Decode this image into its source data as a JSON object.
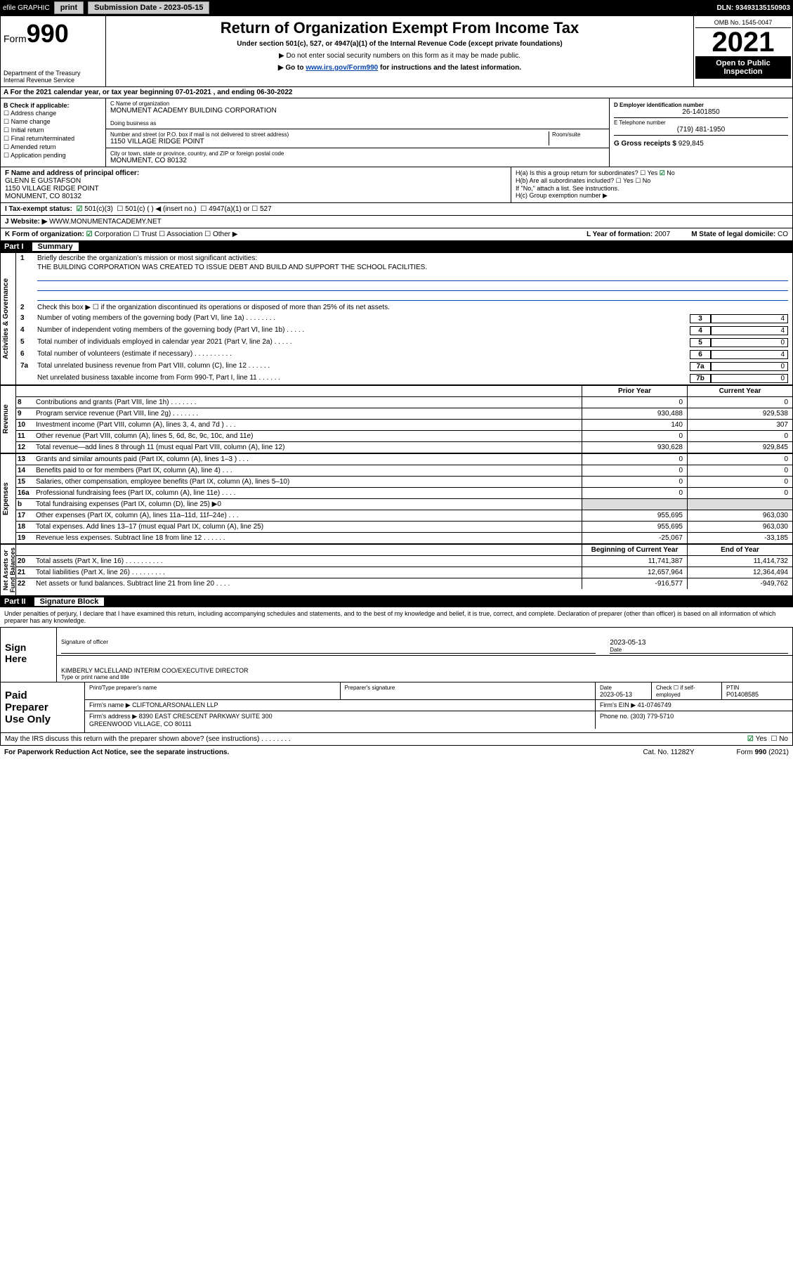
{
  "topbar": {
    "efile": "efile GRAPHIC",
    "print": "print",
    "subdate_label": "Submission Date - 2023-05-15",
    "dln": "DLN: 93493135150903"
  },
  "header": {
    "form_label": "Form",
    "form_num": "990",
    "dept": "Department of the Treasury\nInternal Revenue Service",
    "title": "Return of Organization Exempt From Income Tax",
    "subtitle": "Under section 501(c), 527, or 4947(a)(1) of the Internal Revenue Code (except private foundations)",
    "note1": "▶ Do not enter social security numbers on this form as it may be made public.",
    "note2_pre": "▶ Go to ",
    "note2_link": "www.irs.gov/Form990",
    "note2_post": " for instructions and the latest information.",
    "omb": "OMB No. 1545-0047",
    "year": "2021",
    "open_public": "Open to Public\nInspection"
  },
  "row_a": "A For the 2021 calendar year, or tax year beginning 07-01-2021   , and ending 06-30-2022",
  "sec_b": {
    "label": "B Check if applicable:",
    "items": [
      "Address change",
      "Name change",
      "Initial return",
      "Final return/terminated",
      "Amended return",
      "Application pending"
    ]
  },
  "sec_c": {
    "name_label": "C Name of organization",
    "name": "MONUMENT ACADEMY BUILDING CORPORATION",
    "dba_label": "Doing business as",
    "addr_label": "Number and street (or P.O. box if mail is not delivered to street address)",
    "room_label": "Room/suite",
    "addr": "1150 VILLAGE RIDGE POINT",
    "city_label": "City or town, state or province, country, and ZIP or foreign postal code",
    "city": "MONUMENT, CO  80132"
  },
  "sec_d": {
    "ein_label": "D Employer identification number",
    "ein": "26-1401850",
    "tel_label": "E Telephone number",
    "tel": "(719) 481-1950",
    "gross_label": "G Gross receipts $",
    "gross": "929,845"
  },
  "sec_f": {
    "label": "F  Name and address of principal officer:",
    "name": "GLENN E GUSTAFSON",
    "addr1": "1150 VILLAGE RIDGE POINT",
    "addr2": "MONUMENT, CO  80132"
  },
  "sec_h": {
    "ha": "H(a)  Is this a group return for subordinates?",
    "ha_yes": "Yes",
    "ha_no": "No",
    "hb": "H(b)  Are all subordinates included?",
    "hb_note": "If \"No,\" attach a list. See instructions.",
    "hc": "H(c)  Group exemption number ▶"
  },
  "row_i": {
    "label": "I   Tax-exempt status:",
    "opt1": "501(c)(3)",
    "opt2": "501(c) (  ) ◀ (insert no.)",
    "opt3": "4947(a)(1) or",
    "opt4": "527"
  },
  "row_j": {
    "label": "J   Website: ▶",
    "val": "WWW.MONUMENTACADEMY.NET"
  },
  "row_k": {
    "label": "K Form of organization:",
    "opts": [
      "Corporation",
      "Trust",
      "Association",
      "Other ▶"
    ],
    "l_label": "L Year of formation:",
    "l_val": "2007",
    "m_label": "M State of legal domicile:",
    "m_val": "CO"
  },
  "part1": {
    "label": "Part I",
    "title": "Summary"
  },
  "mission": {
    "q1": "Briefly describe the organization's mission or most significant activities:",
    "q1v": "THE BUILDING CORPORATION WAS CREATED TO ISSUE DEBT AND BUILD AND SUPPORT THE SCHOOL FACILITIES.",
    "q2": "Check this box ▶ ☐  if the organization discontinued its operations or disposed of more than 25% of its net assets."
  },
  "gov_lines": [
    {
      "n": "3",
      "t": "Number of voting members of the governing body (Part VI, line 1a)  .   .   .   .   .   .   .   .",
      "bn": "3",
      "bv": "4"
    },
    {
      "n": "4",
      "t": "Number of independent voting members of the governing body (Part VI, line 1b)  .   .   .   .   .",
      "bn": "4",
      "bv": "4"
    },
    {
      "n": "5",
      "t": "Total number of individuals employed in calendar year 2021 (Part V, line 2a)  .   .   .   .   .",
      "bn": "5",
      "bv": "0"
    },
    {
      "n": "6",
      "t": "Total number of volunteers (estimate if necessary)  .   .   .   .   .   .   .   .   .   .",
      "bn": "6",
      "bv": "4"
    },
    {
      "n": "7a",
      "t": "Total unrelated business revenue from Part VIII, column (C), line 12  .   .   .   .   .   .",
      "bn": "7a",
      "bv": "0"
    },
    {
      "n": "",
      "t": "Net unrelated business taxable income from Form 990-T, Part I, line 11  .   .   .   .   .   .",
      "bn": "7b",
      "bv": "0"
    }
  ],
  "fin_hdr": {
    "c1": "Prior Year",
    "c2": "Current Year"
  },
  "revenue": [
    {
      "n": "8",
      "t": "Contributions and grants (Part VIII, line 1h)   .   .   .   .   .   .   .",
      "c1": "0",
      "c2": "0"
    },
    {
      "n": "9",
      "t": "Program service revenue (Part VIII, line 2g)   .   .   .   .   .   .   .",
      "c1": "930,488",
      "c2": "929,538"
    },
    {
      "n": "10",
      "t": "Investment income (Part VIII, column (A), lines 3, 4, and 7d )   .   .   .",
      "c1": "140",
      "c2": "307"
    },
    {
      "n": "11",
      "t": "Other revenue (Part VIII, column (A), lines 5, 6d, 8c, 9c, 10c, and 11e)",
      "c1": "0",
      "c2": "0"
    },
    {
      "n": "12",
      "t": "Total revenue—add lines 8 through 11 (must equal Part VIII, column (A), line 12)",
      "c1": "930,628",
      "c2": "929,845"
    }
  ],
  "expenses": [
    {
      "n": "13",
      "t": "Grants and similar amounts paid (Part IX, column (A), lines 1–3 )   .   .   .",
      "c1": "0",
      "c2": "0"
    },
    {
      "n": "14",
      "t": "Benefits paid to or for members (Part IX, column (A), line 4)   .   .   .",
      "c1": "0",
      "c2": "0"
    },
    {
      "n": "15",
      "t": "Salaries, other compensation, employee benefits (Part IX, column (A), lines 5–10)",
      "c1": "0",
      "c2": "0"
    },
    {
      "n": "16a",
      "t": "Professional fundraising fees (Part IX, column (A), line 11e)   .   .   .   .",
      "c1": "0",
      "c2": "0"
    },
    {
      "n": "b",
      "t": "Total fundraising expenses (Part IX, column (D), line 25) ▶0",
      "c1": "",
      "c2": "",
      "shade": true
    },
    {
      "n": "17",
      "t": "Other expenses (Part IX, column (A), lines 11a–11d, 11f–24e)   .   .   .",
      "c1": "955,695",
      "c2": "963,030"
    },
    {
      "n": "18",
      "t": "Total expenses. Add lines 13–17 (must equal Part IX, column (A), line 25)",
      "c1": "955,695",
      "c2": "963,030"
    },
    {
      "n": "19",
      "t": "Revenue less expenses. Subtract line 18 from line 12   .   .   .   .   .   .",
      "c1": "-25,067",
      "c2": "-33,185"
    }
  ],
  "net_hdr": {
    "c1": "Beginning of Current Year",
    "c2": "End of Year"
  },
  "netassets": [
    {
      "n": "20",
      "t": "Total assets (Part X, line 16)   .   .   .   .   .   .   .   .   .   .",
      "c1": "11,741,387",
      "c2": "11,414,732"
    },
    {
      "n": "21",
      "t": "Total liabilities (Part X, line 26)   .   .   .   .   .   .   .   .   .",
      "c1": "12,657,964",
      "c2": "12,364,494"
    },
    {
      "n": "22",
      "t": "Net assets or fund balances. Subtract line 21 from line 20   .   .   .   .",
      "c1": "-916,577",
      "c2": "-949,762"
    }
  ],
  "vtabs": {
    "gov": "Activities & Governance",
    "rev": "Revenue",
    "exp": "Expenses",
    "net": "Net Assets or\nFund Balances"
  },
  "part2": {
    "label": "Part II",
    "title": "Signature Block"
  },
  "sig_note": "Under penalties of perjury, I declare that I have examined this return, including accompanying schedules and statements, and to the best of my knowledge and belief, it is true, correct, and complete. Declaration of preparer (other than officer) is based on all information of which preparer has any knowledge.",
  "sign": {
    "here": "Sign\nHere",
    "sig_label": "Signature of officer",
    "date_label": "Date",
    "date": "2023-05-13",
    "name": "KIMBERLY MCLELLAND INTERIM COO/EXECUTIVE DIRECTOR",
    "name_label": "Type or print name and title"
  },
  "prep": {
    "label": "Paid\nPreparer\nUse Only",
    "h1": "Print/Type preparer's name",
    "h2": "Preparer's signature",
    "h3": "Date",
    "h3v": "2023-05-13",
    "h4": "Check ☐ if self-employed",
    "h5": "PTIN",
    "h5v": "P01408585",
    "firm_label": "Firm's name    ▶",
    "firm": "CLIFTONLARSONALLEN LLP",
    "ein_label": "Firm's EIN ▶",
    "ein": "41-0746749",
    "addr_label": "Firm's address ▶",
    "addr": "8390 EAST CRESCENT PARKWAY SUITE 300\nGREENWOOD VILLAGE, CO  80111",
    "phone_label": "Phone no.",
    "phone": "(303) 779-5710"
  },
  "irs_q": "May the IRS discuss this return with the preparer shown above? (see instructions)   .   .   .   .   .   .   .   .",
  "irs_yes": "Yes",
  "irs_no": "No",
  "footer": {
    "left": "For Paperwork Reduction Act Notice, see the separate instructions.",
    "mid": "Cat. No. 11282Y",
    "right": "Form 990 (2021)"
  }
}
